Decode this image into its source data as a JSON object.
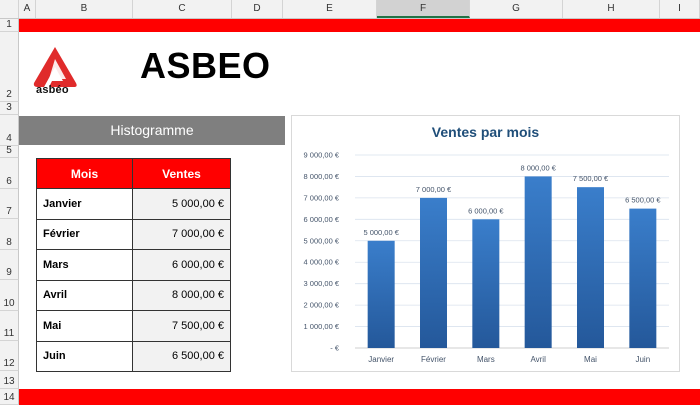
{
  "sheet": {
    "columns": [
      "A",
      "B",
      "C",
      "D",
      "E",
      "F",
      "G",
      "H",
      "I"
    ],
    "selected_column": "F",
    "rows": [
      "1",
      "2",
      "3",
      "4",
      "5",
      "6",
      "7",
      "8",
      "9",
      "10",
      "11",
      "12",
      "13",
      "14"
    ]
  },
  "brand": {
    "logo_text": "asbéo",
    "title": "ASBEO",
    "accent_color": "#ff0000"
  },
  "section": {
    "title": "Histogramme"
  },
  "table": {
    "headers": [
      "Mois",
      "Ventes"
    ],
    "rows": [
      {
        "mois": "Janvier",
        "ventes": "5 000,00 €"
      },
      {
        "mois": "Février",
        "ventes": "7 000,00 €"
      },
      {
        "mois": "Mars",
        "ventes": "6 000,00 €"
      },
      {
        "mois": "Avril",
        "ventes": "8 000,00 €"
      },
      {
        "mois": "Mai",
        "ventes": "7 500,00 €"
      },
      {
        "mois": "Juin",
        "ventes": "6 500,00 €"
      }
    ]
  },
  "chart_data": {
    "type": "bar",
    "title": "Ventes par mois",
    "categories": [
      "Janvier",
      "Février",
      "Mars",
      "Avril",
      "Mai",
      "Juin"
    ],
    "values": [
      5000,
      7000,
      6000,
      8000,
      7500,
      6500
    ],
    "data_labels": [
      "5 000,00 €",
      "7 000,00 €",
      "6 000,00 €",
      "8 000,00 €",
      "7 500,00 €",
      "6 500,00 €"
    ],
    "ylim": [
      0,
      9000
    ],
    "y_ticks": [
      0,
      1000,
      2000,
      3000,
      4000,
      5000,
      6000,
      7000,
      8000,
      9000
    ],
    "y_tick_labels": [
      "-  €",
      "1 000,00 €",
      "2 000,00 €",
      "3 000,00 €",
      "4 000,00 €",
      "5 000,00 €",
      "6 000,00 €",
      "7 000,00 €",
      "8 000,00 €",
      "9 000,00 €"
    ],
    "grid": true,
    "legend": "none",
    "bar_color": "#2e75b6"
  }
}
